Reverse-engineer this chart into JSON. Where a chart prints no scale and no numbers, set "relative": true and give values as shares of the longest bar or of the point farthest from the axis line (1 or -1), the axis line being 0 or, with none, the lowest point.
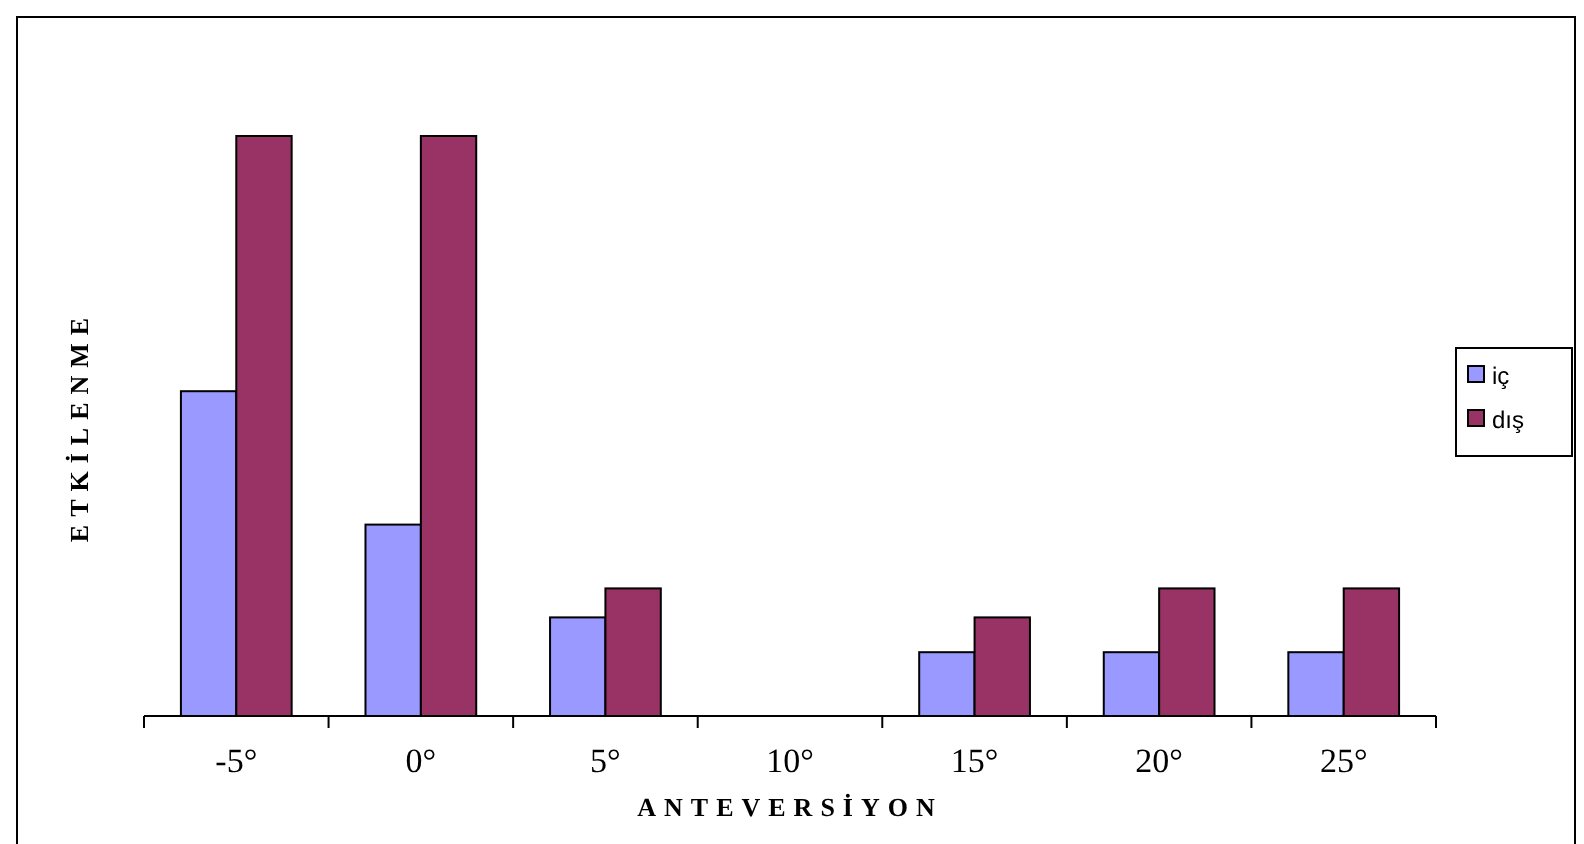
{
  "chart_data": {
    "type": "bar",
    "relative": true,
    "xlabel": "ANTEVERSİYON",
    "ylabel": "ETKİLENME",
    "categories": [
      "-5°",
      "0°",
      "5°",
      "10°",
      "15°",
      "20°",
      "25°"
    ],
    "series": [
      {
        "name": "iç",
        "color": "#9999ff",
        "values": [
          0.56,
          0.33,
          0.17,
          0,
          0.11,
          0.11,
          0.11
        ]
      },
      {
        "name": "dış",
        "color": "#993366",
        "values": [
          1,
          1,
          0.22,
          0,
          0.17,
          0.22,
          0.22
        ]
      }
    ],
    "legend": "right"
  }
}
